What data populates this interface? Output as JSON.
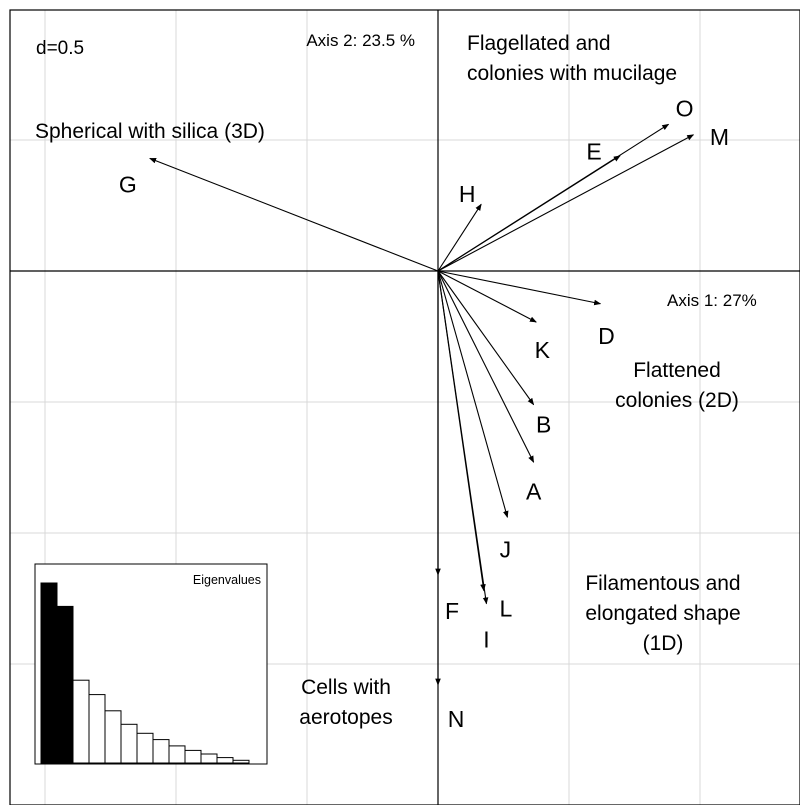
{
  "chart_data": {
    "type": "scatter",
    "grid_spacing_label": "d=0.5",
    "xlabel": "Axis 1: 27%",
    "ylabel": "Axis 2: 23.5 %",
    "grid": true,
    "xlim": [
      -1.64,
      1.36
    ],
    "ylim": [
      -1.84,
      1.0
    ],
    "arrows": [
      {
        "label": "A",
        "x": 0.365,
        "y": -0.73
      },
      {
        "label": "B",
        "x": 0.365,
        "y": -0.51
      },
      {
        "label": "D",
        "x": 0.62,
        "y": -0.125
      },
      {
        "label": "E",
        "x": 0.695,
        "y": 0.44
      },
      {
        "label": "F",
        "x": 0.0,
        "y": -1.16
      },
      {
        "label": "G",
        "x": -1.1,
        "y": 0.43
      },
      {
        "label": "H",
        "x": 0.165,
        "y": 0.255
      },
      {
        "label": "I",
        "x": 0.185,
        "y": -1.27
      },
      {
        "label": "J",
        "x": 0.265,
        "y": -0.94
      },
      {
        "label": "K",
        "x": 0.375,
        "y": -0.195
      },
      {
        "label": "L",
        "x": 0.175,
        "y": -1.22
      },
      {
        "label": "M",
        "x": 0.975,
        "y": 0.52
      },
      {
        "label": "N",
        "x": 0.0,
        "y": -1.58
      },
      {
        "label": "O",
        "x": 0.88,
        "y": 0.56
      }
    ],
    "annotations": [
      {
        "lines": [
          "Flagellated and",
          "colonies with mucilage"
        ]
      },
      {
        "lines": [
          "Spherical with silica (3D)"
        ]
      },
      {
        "lines": [
          "Flattened",
          "colonies (2D)"
        ]
      },
      {
        "lines": [
          "Filamentous and",
          "elongated shape",
          "(1D)"
        ]
      },
      {
        "lines": [
          "Cells with",
          "aerotopes"
        ]
      }
    ],
    "eigenvalues": {
      "title": "Eigenvalues",
      "values": [
        1.0,
        0.87,
        0.46,
        0.38,
        0.29,
        0.215,
        0.165,
        0.13,
        0.095,
        0.07,
        0.05,
        0.03,
        0.015
      ],
      "highlight_count": 2
    }
  }
}
